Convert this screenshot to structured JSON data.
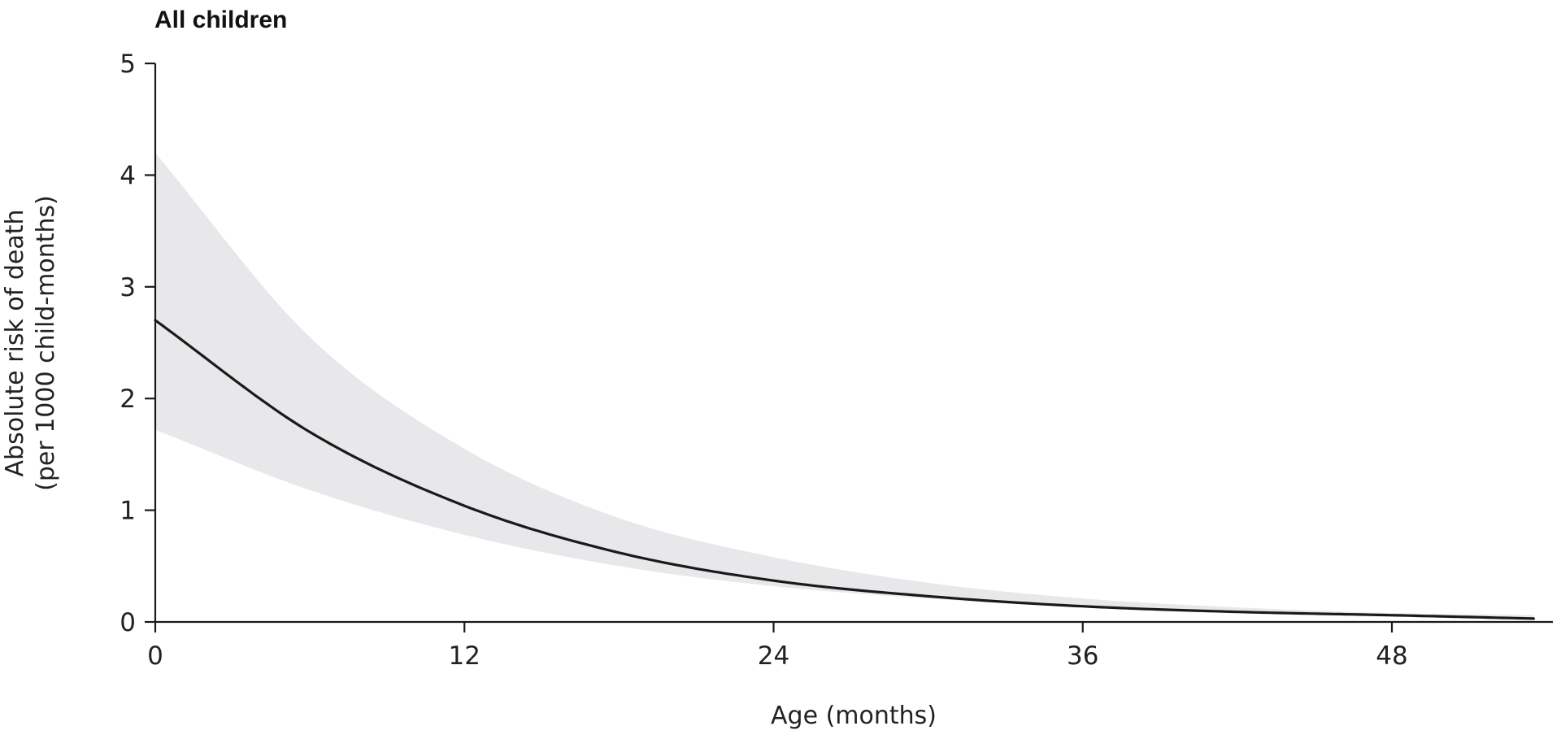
{
  "chart_data": {
    "type": "line",
    "title": "All children",
    "xlabel": "Age (months)",
    "ylabel": "Absolute risk of death",
    "ylabel_line2": "(per 1000 child-months)",
    "xlim": [
      0,
      53.5
    ],
    "ylim": [
      0,
      5
    ],
    "x_ticks": [
      0,
      12,
      24,
      36,
      48
    ],
    "y_ticks": [
      0,
      1,
      2,
      3,
      4,
      5
    ],
    "grid": false,
    "legend": "none",
    "series": [
      {
        "style": "solid",
        "color": "#1a1a1a",
        "x": [
          0,
          6,
          12,
          18,
          24,
          30,
          36,
          42,
          48,
          53.5
        ],
        "y": [
          2.7,
          1.7,
          1.04,
          0.62,
          0.37,
          0.23,
          0.14,
          0.09,
          0.06,
          0.03
        ]
      }
    ],
    "confidence_band": {
      "color": "#e8e8ea",
      "x": [
        0,
        6,
        12,
        18,
        24,
        30,
        36,
        42,
        48,
        53.5
      ],
      "lower": [
        1.72,
        1.18,
        0.78,
        0.5,
        0.32,
        0.21,
        0.13,
        0.09,
        0.055,
        0.03
      ],
      "upper": [
        4.2,
        2.55,
        1.55,
        0.93,
        0.58,
        0.35,
        0.21,
        0.13,
        0.08,
        0.06
      ]
    }
  }
}
